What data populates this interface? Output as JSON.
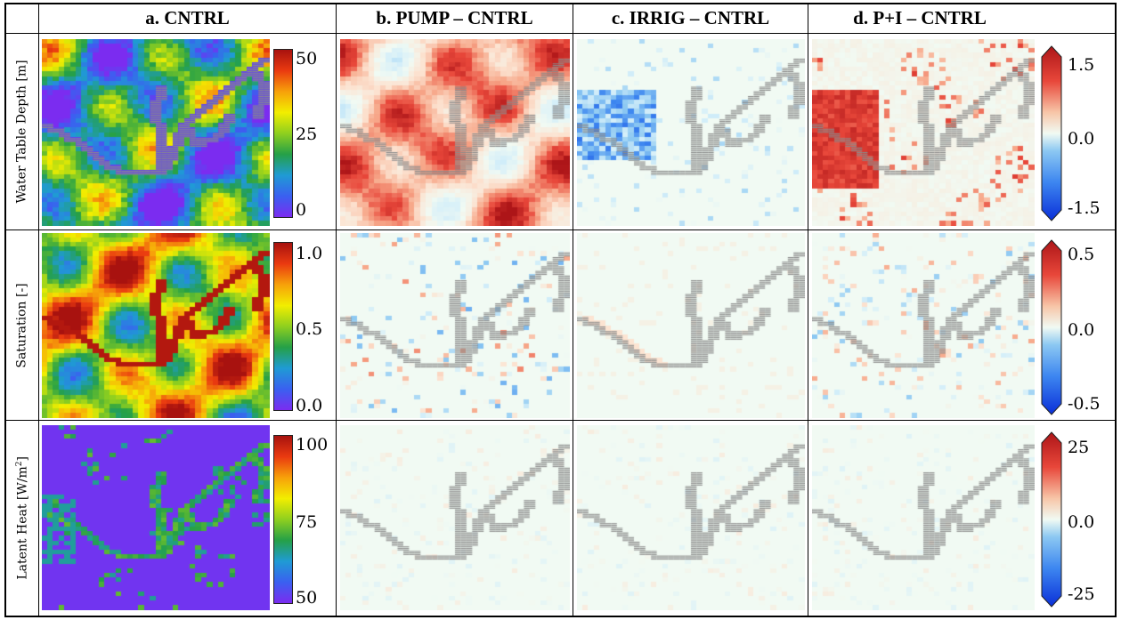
{
  "columns": [
    {
      "id": "a",
      "title": "a. CNTRL"
    },
    {
      "id": "b",
      "title": "b. PUMP – CNTRL"
    },
    {
      "id": "c",
      "title": "c. IRRIG – CNTRL"
    },
    {
      "id": "d",
      "title": "d. P+I – CNTRL"
    }
  ],
  "rows": [
    {
      "id": "wtd",
      "label": "Water Table Depth [m]",
      "label_main": "Water Table Depth [m]",
      "label_sup": "",
      "cntrl_ticks": [
        "50",
        "25",
        "0"
      ],
      "diff_ticks": [
        "1.5",
        "0.0",
        "-1.5"
      ],
      "cntrl_range": [
        0,
        50
      ],
      "diff_range": [
        -1.5,
        1.5
      ],
      "diff_extend": "both"
    },
    {
      "id": "sat",
      "label": "Saturation [-]",
      "label_main": "Saturation [-]",
      "label_sup": "",
      "cntrl_ticks": [
        "1.0",
        "0.5",
        "0.0"
      ],
      "diff_ticks": [
        "0.5",
        "0.0",
        "-0.5"
      ],
      "cntrl_range": [
        0,
        1
      ],
      "diff_range": [
        -0.5,
        0.5
      ],
      "diff_extend": "both"
    },
    {
      "id": "lh",
      "label": "Latent Heat [W/m2]",
      "label_main": "Latent Heat [W/m",
      "label_sup": "2",
      "cntrl_ticks": [
        "100",
        "75",
        "50"
      ],
      "diff_ticks": [
        "25",
        "0.0",
        "-25"
      ],
      "cntrl_range": [
        50,
        100
      ],
      "diff_range": [
        -25,
        25
      ],
      "diff_extend": "both"
    }
  ],
  "colormaps": {
    "sequential": [
      "#7b2cf0",
      "#3a60f0",
      "#1f9bd4",
      "#25a047",
      "#8fcf1f",
      "#f2ee00",
      "#f7a10a",
      "#ea3a10",
      "#a8120f"
    ],
    "diverging": [
      "#0a2fd8",
      "#3d86f0",
      "#8cc8f2",
      "#d3eef9",
      "#f1faf3",
      "#fce3d1",
      "#f7a88a",
      "#e8473a",
      "#ad1518"
    ]
  },
  "river_color": "#8a8a8a"
}
